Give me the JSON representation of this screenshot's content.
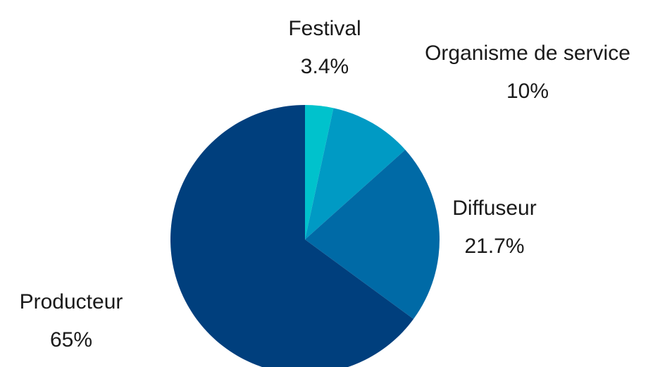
{
  "chart_data": {
    "type": "pie",
    "title": "",
    "start": "top",
    "direction": "clockwise",
    "slices": [
      {
        "label": "Festival",
        "display_value": "3.4%",
        "value": 3.4,
        "color": "#00c2cc"
      },
      {
        "label": "Organisme de service",
        "display_value": "10%",
        "value": 10,
        "color": "#009ac4"
      },
      {
        "label": "Diffuseur",
        "display_value": "21.7%",
        "value": 21.7,
        "color": "#006aa6"
      },
      {
        "label": "Producteur",
        "display_value": "65%",
        "value": 65,
        "color": "#003f7d"
      }
    ],
    "legend": false
  }
}
